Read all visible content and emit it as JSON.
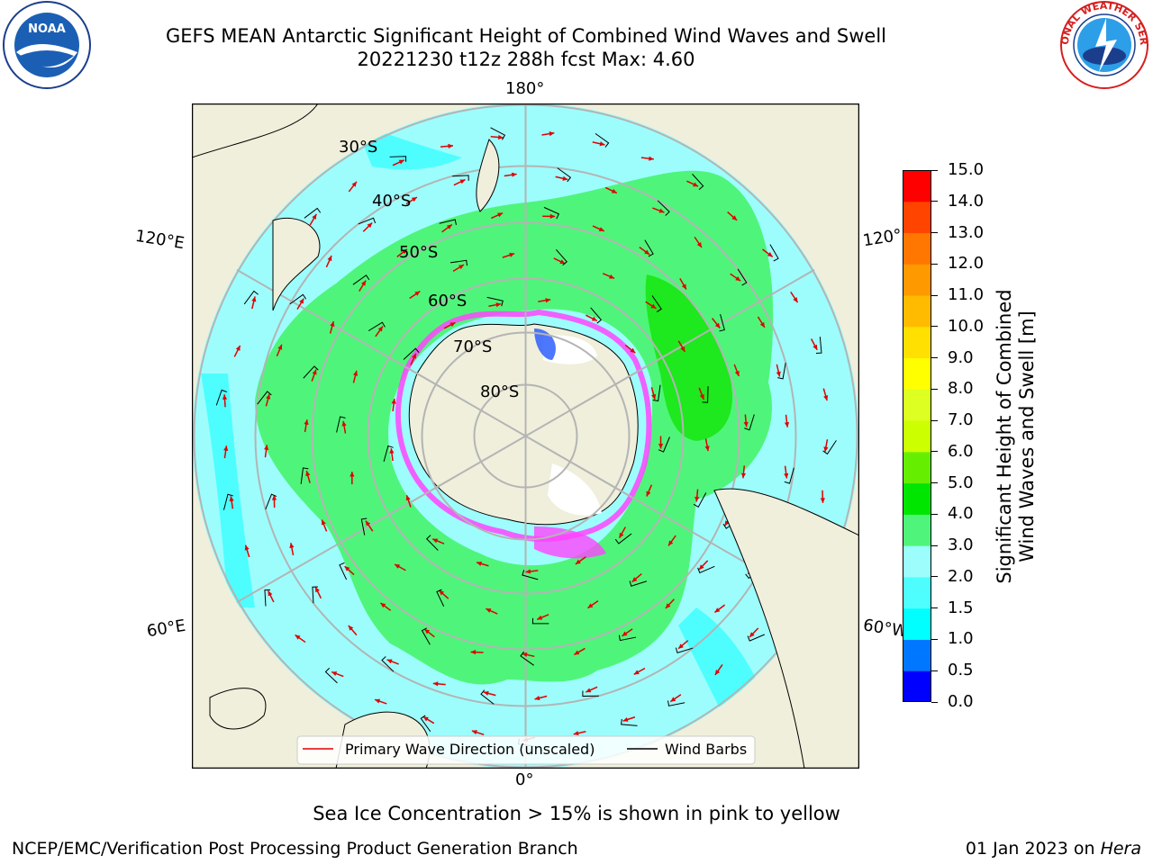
{
  "header": {
    "title_line1": "GEFS MEAN Antarctic Significant Height of Combined Wind Waves and Swell",
    "title_line2": "20221230 t12z 288h fcst   Max: 4.60",
    "logo_left_text": "NOAA",
    "logo_right_text": "NATIONAL WEATHER SERVICE"
  },
  "map": {
    "lon_labels": {
      "top": "180°",
      "bottom": "0°",
      "left_upper": "120°E",
      "left_lower": "60°E",
      "right_upper": "120°",
      "right_lower": "60°W"
    },
    "lat_labels": [
      "30°S",
      "40°S",
      "50°S",
      "60°S",
      "70°S",
      "80°S"
    ],
    "legend": {
      "wave_direction": "Primary Wave Direction (unscaled)",
      "wind_barbs": "Wind Barbs"
    },
    "colors": {
      "ocean_low": "#9dfdfd",
      "ocean_mid": "#4efefe",
      "band": "#4ff57a",
      "band_high": "#1ee81e",
      "land": "#efefdc",
      "ice_pink": "#ff44ff",
      "ice_white": "#ffffff",
      "arrow": "#e00000"
    }
  },
  "colorbar": {
    "label_line1": "Significant Height of Combined",
    "label_line2": "Wind Waves and Swell [m]",
    "ticks": [
      "0.0",
      "0.5",
      "1.0",
      "1.5",
      "2.0",
      "3.0",
      "4.0",
      "5.0",
      "6.0",
      "7.0",
      "8.0",
      "9.0",
      "10.0",
      "11.0",
      "12.0",
      "13.0",
      "14.0",
      "15.0"
    ],
    "colors": [
      "#0000ff",
      "#0077ff",
      "#00ffff",
      "#4efefe",
      "#9dfdfd",
      "#4ff57a",
      "#00e600",
      "#66ee00",
      "#ccff00",
      "#ddff22",
      "#ffff00",
      "#ffe000",
      "#ffbb00",
      "#ff9900",
      "#ff7700",
      "#ff4400",
      "#ff0000"
    ]
  },
  "note": "Sea Ice Concentration > 15% is shown in pink to yellow",
  "footer": {
    "left": "NCEP/EMC/Verification Post Processing Product Generation Branch",
    "right_date": "01 Jan 2023 on",
    "right_host": "Hera"
  }
}
